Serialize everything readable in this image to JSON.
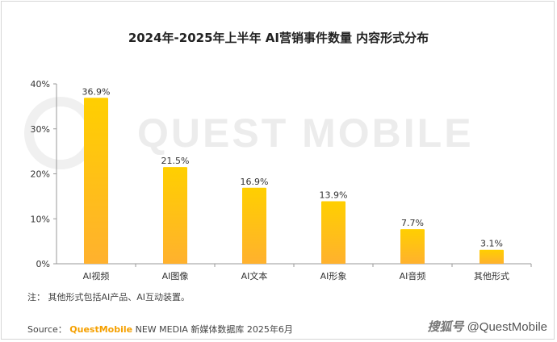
{
  "title": "2024年-2025年上半年 AI营销事件数量 内容形式分布",
  "watermark": "QUEST MOBILE",
  "note": "注：  其他形式包括AI产品、AI互动装置。",
  "source": {
    "prefix": "Source：",
    "brand": "QuestMobile",
    "rest": " NEW MEDIA 新媒体数据库 2025年6月"
  },
  "credit": {
    "channel": "搜狐号",
    "handle": "@QuestMobile"
  },
  "colors": {
    "bar_top": "#ffcf00",
    "bar_bottom": "#ffb12e",
    "axis": "#999999",
    "text": "#333333"
  },
  "chart_data": {
    "type": "bar",
    "categories": [
      "AI视频",
      "AI图像",
      "AI文本",
      "AI形象",
      "AI音频",
      "其他形式"
    ],
    "values": [
      36.9,
      21.5,
      16.9,
      13.9,
      7.7,
      3.1
    ],
    "data_labels": [
      "36.9%",
      "21.5%",
      "16.9%",
      "13.9%",
      "7.7%",
      "3.1%"
    ],
    "yticks": [
      "0%",
      "10%",
      "20%",
      "30%",
      "40%"
    ],
    "ylim": [
      0,
      40
    ],
    "ylabel": "",
    "xlabel": "",
    "grid": false,
    "legend": "none"
  }
}
